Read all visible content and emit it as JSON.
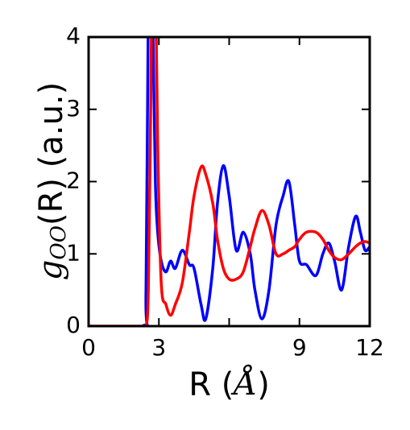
{
  "chart_data": {
    "type": "line",
    "xlabel": [
      "R (",
      "Å",
      ")"
    ],
    "ylabel": [
      "g",
      "OO",
      "(R) (a.u.)"
    ],
    "x": [
      0,
      2.3,
      2.45,
      2.55,
      2.65,
      2.75,
      2.85,
      2.95,
      3.1,
      3.3,
      3.5,
      3.7,
      4.0,
      4.3,
      4.5,
      4.8,
      5.0,
      5.3,
      5.5,
      5.75,
      6.0,
      6.3,
      6.6,
      6.9,
      7.1,
      7.4,
      7.7,
      8.0,
      8.3,
      8.55,
      8.8,
      9.0,
      9.3,
      9.7,
      10.0,
      10.25,
      10.5,
      10.8,
      11.1,
      11.4,
      11.6,
      11.8,
      12.0
    ],
    "series": [
      {
        "color": "#0000ff",
        "values": [
          0,
          0,
          0.5,
          4.5,
          6,
          4,
          2,
          1.3,
          0.9,
          0.75,
          0.9,
          0.8,
          1.05,
          0.85,
          0.8,
          0.3,
          0.1,
          0.8,
          1.7,
          2.22,
          1.8,
          1.05,
          1.3,
          1.0,
          0.5,
          0.1,
          0.5,
          1.4,
          1.8,
          2.0,
          1.4,
          0.9,
          0.85,
          0.7,
          1.0,
          1.15,
          0.9,
          0.5,
          1.1,
          1.52,
          1.3,
          1.05,
          1.1
        ]
      },
      {
        "color": "#ff0000",
        "values": [
          0,
          0,
          0,
          0.5,
          3,
          6,
          5,
          2.5,
          0.6,
          0.3,
          0.15,
          0.3,
          0.6,
          1.3,
          1.8,
          2.2,
          2.1,
          1.7,
          1.2,
          0.8,
          0.65,
          0.65,
          0.75,
          1.1,
          1.35,
          1.6,
          1.4,
          1.0,
          1.0,
          1.05,
          1.1,
          1.2,
          1.3,
          1.3,
          1.2,
          1.05,
          0.95,
          0.92,
          1.0,
          1.1,
          1.15,
          1.17,
          1.15
        ]
      }
    ],
    "xlim": [
      0,
      12
    ],
    "ylim": [
      0,
      4
    ],
    "xticks": [
      0,
      3,
      {
        "value": 6,
        "label": null
      },
      9,
      12
    ],
    "yticks": [
      0,
      1,
      2,
      3,
      4
    ]
  }
}
